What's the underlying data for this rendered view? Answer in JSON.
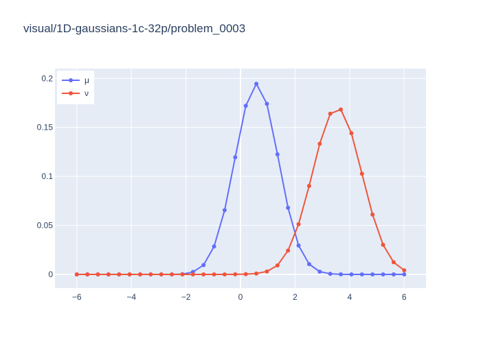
{
  "chart_data": {
    "type": "line",
    "title": "visual/1D-gaussians-1c-32p/problem_0003",
    "xlabel": "",
    "ylabel": "",
    "xlim": [
      -6.8,
      6.8
    ],
    "ylim": [
      -0.014,
      0.21
    ],
    "xticks": [
      -6,
      -4,
      -2,
      0,
      2,
      4,
      6
    ],
    "xtick_labels": [
      "−6",
      "−4",
      "−2",
      "0",
      "2",
      "4",
      "6"
    ],
    "yticks": [
      0,
      0.05,
      0.1,
      0.15,
      0.2
    ],
    "ytick_labels": [
      "0",
      "0.05",
      "0.1",
      "0.15",
      "0.2"
    ],
    "grid": true,
    "legend_position": "top-left",
    "x": [
      -6,
      -5.613,
      -5.226,
      -4.839,
      -4.452,
      -4.065,
      -3.677,
      -3.29,
      -2.903,
      -2.516,
      -2.129,
      -1.742,
      -1.355,
      -0.968,
      -0.581,
      -0.194,
      0.194,
      0.581,
      0.968,
      1.355,
      1.742,
      2.129,
      2.516,
      2.903,
      3.29,
      3.677,
      4.065,
      4.452,
      4.839,
      5.226,
      5.613,
      6
    ],
    "series": [
      {
        "name": "μ",
        "color": "#636efa",
        "values": [
          0,
          0,
          0,
          0,
          0,
          0,
          0,
          0,
          0,
          0,
          0.0003,
          0.0025,
          0.0095,
          0.0285,
          0.0655,
          0.1195,
          0.172,
          0.1945,
          0.174,
          0.1225,
          0.068,
          0.0295,
          0.0105,
          0.0028,
          0.0006,
          0.0001,
          0,
          0,
          0,
          0,
          0,
          0
        ]
      },
      {
        "name": "ν",
        "color": "#ef553b",
        "values": [
          0,
          0,
          0,
          0,
          0,
          0,
          0,
          0,
          0,
          0,
          0,
          0,
          0,
          0,
          0,
          0.0001,
          0.0003,
          0.0009,
          0.003,
          0.0092,
          0.0243,
          0.0512,
          0.0903,
          0.1333,
          0.164,
          0.1683,
          0.1441,
          0.1027,
          0.0611,
          0.0302,
          0.0124,
          0.0042
        ]
      }
    ]
  }
}
